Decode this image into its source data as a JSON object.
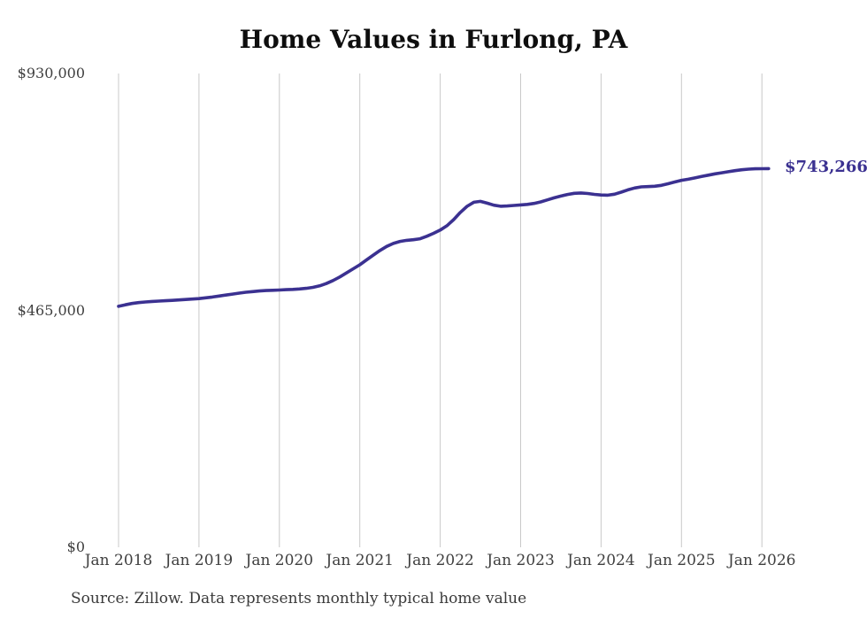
{
  "chart_data": {
    "type": "line",
    "title": "Home Values in Furlong, PA",
    "source": "Source: Zillow. Data represents monthly typical home value",
    "end_label": "$743,266",
    "latest_value": 743266,
    "line_color": "#3b3191",
    "end_label_color": "#3b3191",
    "grid_color": "#c8c8c8",
    "grid": "vertical-only",
    "legend": "none",
    "ylim": [
      0,
      930000
    ],
    "y_ticks": [
      930000,
      465000,
      0
    ],
    "y_tick_labels": [
      "$930,000",
      "$465,000",
      "$0"
    ],
    "x_tick_labels": [
      "Jan 2018",
      "Jan 2019",
      "Jan 2020",
      "Jan 2021",
      "Jan 2022",
      "Jan 2023",
      "Jan 2024",
      "Jan 2025",
      "Jan 2026"
    ],
    "series": [
      {
        "name": "Monthly typical home value",
        "start": "Jan 2018",
        "interval": "monthly",
        "values": [
          473000,
          476000,
          478500,
          480300,
          481600,
          482600,
          483300,
          484000,
          484700,
          485500,
          486400,
          487300,
          488200,
          489700,
          491300,
          493100,
          495100,
          497000,
          498900,
          500600,
          501900,
          503000,
          503900,
          504500,
          505000,
          505600,
          506200,
          507000,
          508200,
          510200,
          513200,
          517600,
          523600,
          530600,
          538600,
          546600,
          554600,
          564000,
          573500,
          582500,
          590500,
          596500,
          600500,
          602500,
          603700,
          605700,
          610500,
          616200,
          622700,
          631200,
          643200,
          657200,
          669200,
          677200,
          679000,
          675500,
          671500,
          669500,
          670000,
          671000,
          672000,
          673000,
          675000,
          678000,
          682000,
          686000,
          689500,
          692500,
          694800,
          695500,
          694500,
          692800,
          691500,
          691200,
          693000,
          697000,
          701500,
          705200,
          707500,
          708000,
          708700,
          710500,
          713500,
          717000,
          720300,
          722500,
          725000,
          727800,
          730500,
          733000,
          735200,
          737300,
          739300,
          741000,
          742300,
          743000,
          743200,
          743266
        ]
      }
    ]
  }
}
